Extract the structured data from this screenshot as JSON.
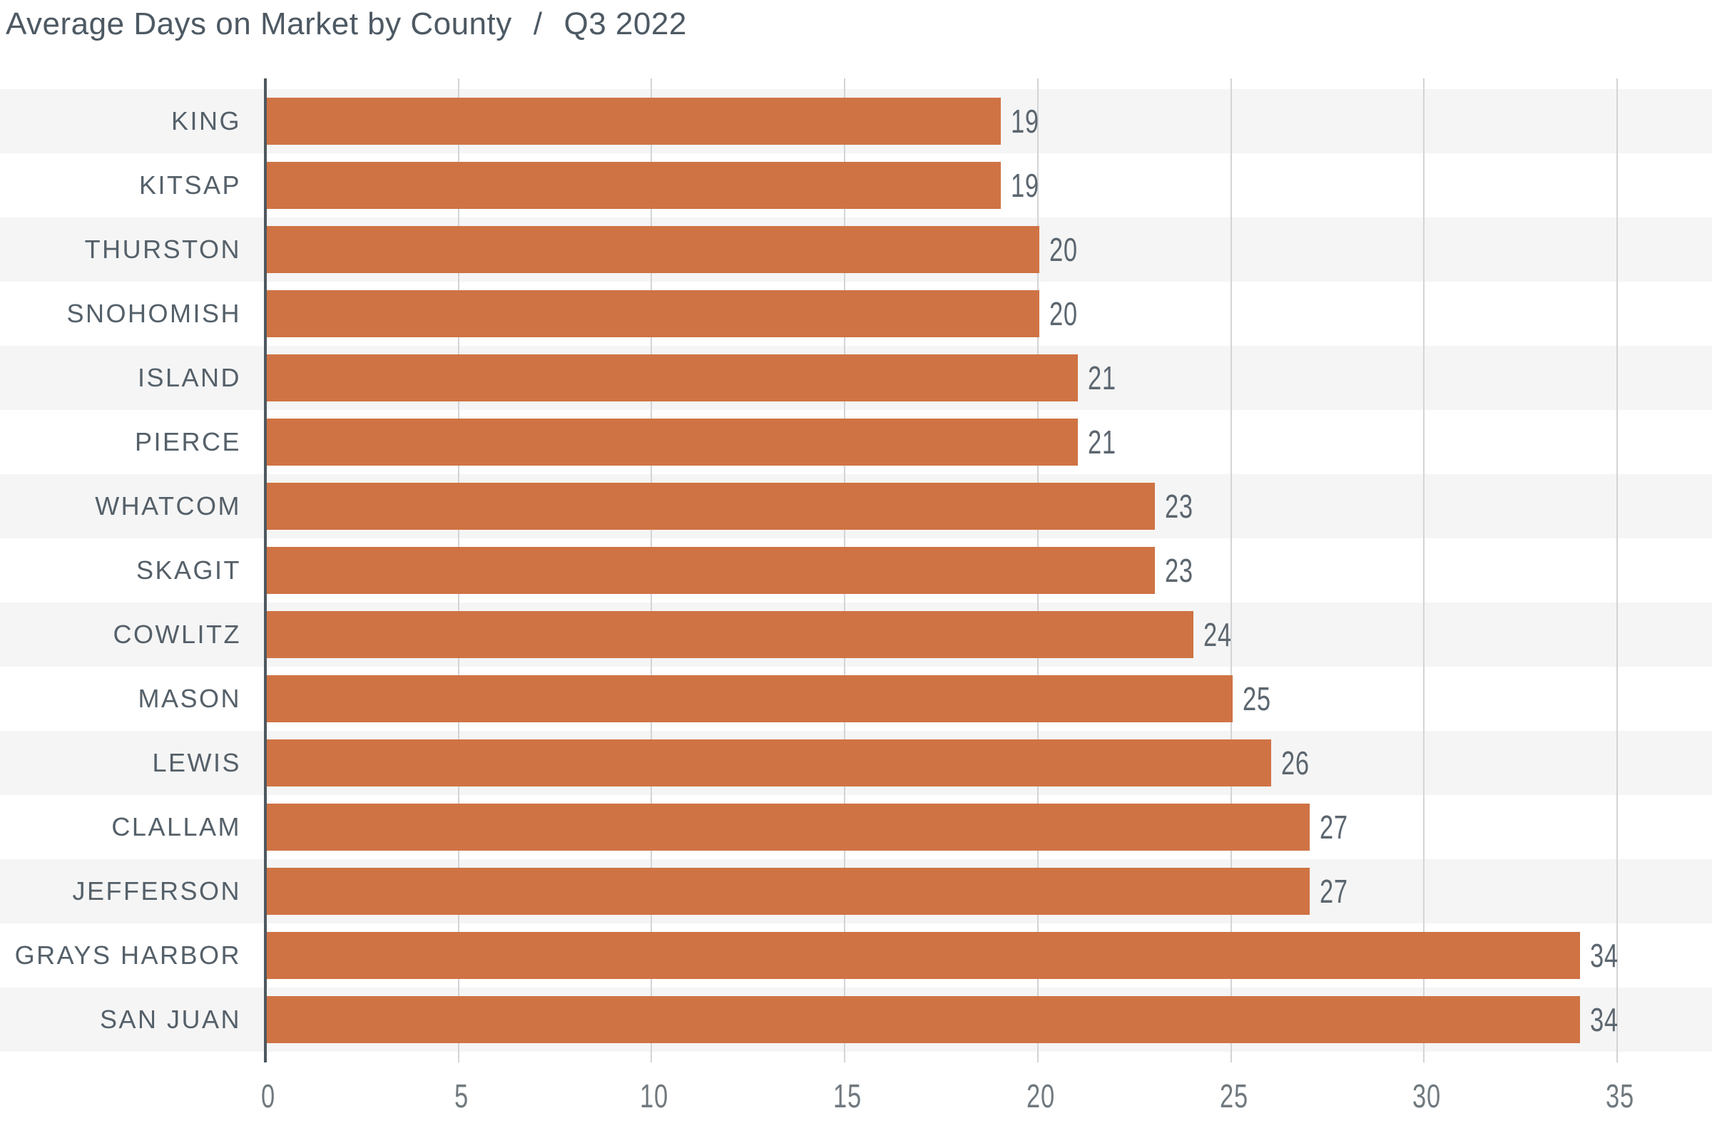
{
  "title": {
    "main": "Average Days on Market by County",
    "separator": "/",
    "period": "Q3 2022"
  },
  "chart_data": {
    "type": "bar",
    "orientation": "horizontal",
    "title": "Average Days on Market by County / Q3 2022",
    "categories": [
      "KING",
      "KITSAP",
      "THURSTON",
      "SNOHOMISH",
      "ISLAND",
      "PIERCE",
      "WHATCOM",
      "SKAGIT",
      "COWLITZ",
      "MASON",
      "LEWIS",
      "CLALLAM",
      "JEFFERSON",
      "GRAYS HARBOR",
      "SAN JUAN"
    ],
    "values": [
      19,
      19,
      20,
      20,
      21,
      21,
      23,
      23,
      24,
      25,
      26,
      27,
      27,
      34,
      34
    ],
    "value_labels": [
      19,
      19,
      20,
      20,
      21,
      21,
      23,
      23,
      24,
      25,
      26,
      27,
      27,
      34,
      34
    ],
    "xlabel": "",
    "ylabel": "",
    "xlim": [
      0,
      35
    ],
    "xticks": [
      0,
      5,
      10,
      15,
      20,
      25,
      30,
      35
    ],
    "grid": true,
    "legend": "none",
    "row_striping": "alternating, first row shaded",
    "colors": {
      "bar": "#cf7344",
      "stripe": "#f5f5f5",
      "gridline": "#d2d4d6",
      "axis": "#4e585f",
      "title_text": "#4d5963",
      "label_text": "#556069",
      "value_text": "#5c666f",
      "tick_text": "#70797f"
    }
  }
}
